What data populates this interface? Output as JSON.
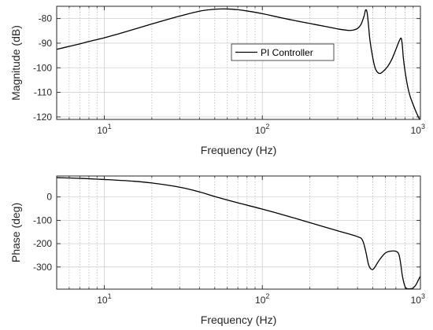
{
  "chart_data": [
    {
      "type": "line",
      "xscale": "log",
      "xlim": [
        5,
        1000
      ],
      "ylim": [
        -121,
        -75
      ],
      "xlabel": "Frequency (Hz)",
      "ylabel": "Magnitude (dB)",
      "xticks": [
        {
          "value": 10,
          "base": "10",
          "exp": "1"
        },
        {
          "value": 100,
          "base": "10",
          "exp": "2"
        },
        {
          "value": 1000,
          "base": "10",
          "exp": "3"
        }
      ],
      "yticks": [
        -80,
        -90,
        -100,
        -110,
        -120
      ],
      "grid": true,
      "legend": {
        "placement": "center-right",
        "entries": [
          "PI Controller"
        ]
      },
      "series": [
        {
          "name": "PI Controller",
          "color": "#000000",
          "x": [
            5,
            6,
            7,
            8,
            10,
            12,
            15,
            20,
            25,
            30,
            40,
            50,
            60,
            70,
            80,
            100,
            130,
            160,
            200,
            250,
            300,
            350,
            380,
            400,
            420,
            440,
            450,
            460,
            470,
            480,
            500,
            520,
            550,
            580,
            620,
            660,
            700,
            730,
            750,
            760,
            770,
            780,
            800,
            830,
            860,
            900,
            940,
            980,
            1000
          ],
          "y": [
            -92.5,
            -91.3,
            -90.3,
            -89.3,
            -87.8,
            -86.4,
            -84.6,
            -82.2,
            -80.4,
            -79.0,
            -77.0,
            -76.2,
            -76.1,
            -76.4,
            -76.9,
            -78.0,
            -79.6,
            -80.8,
            -82.0,
            -83.2,
            -84.2,
            -84.8,
            -84.6,
            -84.0,
            -82.5,
            -79.0,
            -76.5,
            -77.5,
            -83.0,
            -89.0,
            -96.0,
            -100.5,
            -102.3,
            -101.5,
            -99.5,
            -96.5,
            -92.5,
            -89.5,
            -88.0,
            -88.5,
            -91.5,
            -96.0,
            -101.5,
            -107.5,
            -111.5,
            -115.0,
            -118.0,
            -120.5,
            -121.5
          ]
        }
      ]
    },
    {
      "type": "line",
      "xscale": "log",
      "xlim": [
        5,
        1000
      ],
      "ylim": [
        -395,
        90
      ],
      "xlabel": "Frequency (Hz)",
      "ylabel": "Phase (deg)",
      "xticks": [
        {
          "value": 10,
          "base": "10",
          "exp": "1"
        },
        {
          "value": 100,
          "base": "10",
          "exp": "2"
        },
        {
          "value": 1000,
          "base": "10",
          "exp": "3"
        }
      ],
      "yticks": [
        0,
        -100,
        -200,
        -300
      ],
      "grid": true,
      "series": [
        {
          "name": "",
          "color": "#000000",
          "x": [
            5,
            7,
            10,
            15,
            20,
            30,
            40,
            50,
            70,
            100,
            150,
            200,
            300,
            400,
            430,
            450,
            470,
            490,
            510,
            550,
            600,
            650,
            700,
            730,
            750,
            770,
            800,
            830,
            870,
            900,
            940,
            980,
            1000
          ],
          "y": [
            83,
            80,
            75,
            68,
            60,
            42,
            22,
            2,
            -25,
            -52,
            -85,
            -110,
            -145,
            -170,
            -185,
            -230,
            -290,
            -310,
            -305,
            -270,
            -240,
            -232,
            -233,
            -245,
            -285,
            -340,
            -385,
            -393,
            -393,
            -390,
            -375,
            -350,
            -340
          ]
        }
      ]
    }
  ]
}
